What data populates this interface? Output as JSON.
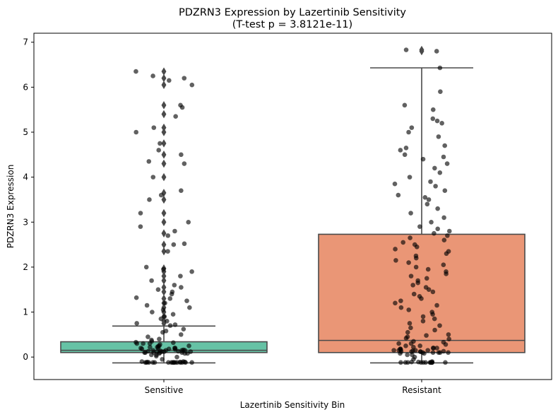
{
  "chart_data": {
    "type": "box",
    "title": "PDZRN3 Expression by Lazertinib Sensitivity",
    "subtitle": "(T-test p = 3.8121e-11)",
    "xlabel": "Lazertinib Sensitivity Bin",
    "ylabel": "PDZRN3 Expression",
    "ylim": [
      -0.5,
      7.2
    ],
    "yticks": [
      0,
      1,
      2,
      3,
      4,
      5,
      6,
      7
    ],
    "grid": false,
    "categories": [
      "Sensitive",
      "Resistant"
    ],
    "colors": {
      "Sensitive": "#66c2a5",
      "Resistant": "#ea9676",
      "box_edge": "#4a4a4a",
      "points": "#000000"
    },
    "boxes": [
      {
        "category": "Sensitive",
        "whisker_low": -0.13,
        "q1": 0.1,
        "median": 0.15,
        "q3": 0.34,
        "whisker_high": 0.69,
        "fliers": [
          0.75,
          0.8,
          0.9,
          1.0,
          1.1,
          1.2,
          1.3,
          1.45,
          1.55,
          1.7,
          1.8,
          1.9,
          1.97,
          2.35,
          2.5,
          2.75,
          3.0,
          3.2,
          3.5,
          3.65,
          4.0,
          4.3,
          4.5,
          4.75,
          5.0,
          5.1,
          5.4,
          5.6,
          6.05,
          6.2,
          6.35
        ]
      },
      {
        "category": "Resistant",
        "whisker_low": -0.13,
        "q1": 0.1,
        "median": 0.37,
        "q3": 2.73,
        "whisker_high": 6.43,
        "fliers": [
          6.8,
          6.83
        ]
      }
    ],
    "points": [
      {
        "category": "Sensitive",
        "values": [
          -0.12,
          -0.12,
          -0.12,
          -0.12,
          -0.12,
          -0.12,
          -0.12,
          -0.12,
          -0.12,
          -0.12,
          -0.12,
          -0.12,
          -0.12,
          -0.12,
          -0.12,
          -0.12,
          -0.11,
          -0.11,
          -0.11,
          -0.1,
          -0.1,
          -0.05,
          0.0,
          0.02,
          0.05,
          0.05,
          0.08,
          0.08,
          0.08,
          0.1,
          0.1,
          0.1,
          0.1,
          0.1,
          0.12,
          0.12,
          0.12,
          0.12,
          0.13,
          0.13,
          0.14,
          0.15,
          0.15,
          0.15,
          0.15,
          0.16,
          0.17,
          0.18,
          0.18,
          0.2,
          0.2,
          0.2,
          0.2,
          0.22,
          0.22,
          0.24,
          0.25,
          0.25,
          0.28,
          0.3,
          0.3,
          0.3,
          0.32,
          0.33,
          0.35,
          0.38,
          0.4,
          0.45,
          0.5,
          0.55,
          0.58,
          0.62,
          0.7,
          0.72,
          0.75,
          0.8,
          0.85,
          0.9,
          0.95,
          1.0,
          1.05,
          1.1,
          1.15,
          1.2,
          1.25,
          1.3,
          1.32,
          1.4,
          1.45,
          1.5,
          1.55,
          1.6,
          1.7,
          1.8,
          1.9,
          1.95,
          2.0,
          2.35,
          2.5,
          2.52,
          2.7,
          2.8,
          2.9,
          3.0,
          3.2,
          3.5,
          3.6,
          3.7,
          4.0,
          4.3,
          4.35,
          4.5,
          4.6,
          4.75,
          5.0,
          5.1,
          5.35,
          5.55,
          5.6,
          6.05,
          6.15,
          6.2,
          6.25,
          6.35
        ]
      },
      {
        "category": "Resistant",
        "values": [
          -0.12,
          -0.12,
          -0.12,
          -0.12,
          -0.12,
          -0.12,
          -0.12,
          -0.12,
          -0.12,
          -0.12,
          -0.12,
          -0.12,
          -0.12,
          -0.11,
          -0.11,
          -0.1,
          -0.05,
          0.0,
          0.05,
          0.05,
          0.08,
          0.08,
          0.1,
          0.1,
          0.1,
          0.1,
          0.1,
          0.12,
          0.12,
          0.12,
          0.12,
          0.13,
          0.14,
          0.15,
          0.15,
          0.15,
          0.15,
          0.16,
          0.18,
          0.18,
          0.2,
          0.2,
          0.2,
          0.22,
          0.25,
          0.25,
          0.28,
          0.3,
          0.3,
          0.33,
          0.35,
          0.4,
          0.42,
          0.45,
          0.48,
          0.5,
          0.55,
          0.6,
          0.65,
          0.7,
          0.75,
          0.8,
          0.85,
          0.9,
          0.95,
          1.0,
          1.05,
          1.1,
          1.15,
          1.2,
          1.25,
          1.3,
          1.35,
          1.4,
          1.45,
          1.5,
          1.55,
          1.6,
          1.65,
          1.7,
          1.75,
          1.8,
          1.85,
          1.9,
          1.95,
          2.0,
          2.05,
          2.1,
          2.15,
          2.2,
          2.25,
          2.3,
          2.35,
          2.4,
          2.45,
          2.5,
          2.55,
          2.6,
          2.65,
          2.7,
          2.75,
          2.8,
          2.85,
          2.9,
          3.0,
          3.1,
          3.2,
          3.3,
          3.4,
          3.5,
          3.55,
          3.6,
          3.7,
          3.8,
          3.85,
          3.9,
          4.0,
          4.1,
          4.2,
          4.3,
          4.4,
          4.45,
          4.5,
          4.6,
          4.65,
          4.7,
          4.9,
          5.0,
          5.1,
          5.2,
          5.25,
          5.3,
          5.5,
          5.6,
          5.9,
          6.43,
          6.8,
          6.83
        ]
      }
    ]
  }
}
